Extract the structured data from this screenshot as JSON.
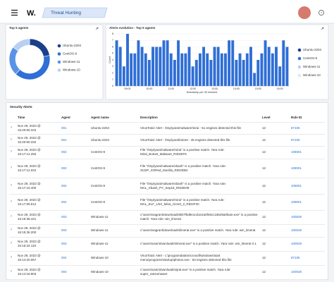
{
  "header": {
    "logo": "W.",
    "title": "Threat Hunting"
  },
  "chart_data": [
    {
      "type": "pie",
      "title": "Top 5 agents",
      "categories": [
        "Ubuntu-2204",
        "CentOS-9",
        "Windows-11",
        "Windows-10"
      ],
      "values": [
        22,
        40,
        23,
        15
      ],
      "colors": [
        "#1b3f8a",
        "#2f6fd6",
        "#5a93e6",
        "#b9d0f3"
      ]
    },
    {
      "type": "bar",
      "title": "Alerts evolution - Top 5 agents",
      "x_label": "timestamp per 30 minutes",
      "y_label": "Count",
      "categories": [
        null,
        null,
        null,
        "09:00",
        null,
        null,
        null,
        null,
        null,
        "10:00",
        null,
        null,
        null,
        null,
        null,
        "11:00",
        null,
        null,
        null,
        null,
        null,
        "12:00",
        null,
        null,
        null,
        null,
        null,
        "13:00",
        null,
        null,
        null,
        null,
        null,
        "14:00",
        null,
        null,
        null,
        null,
        null,
        "15:00",
        null,
        null,
        null,
        null,
        null,
        "16:00",
        null,
        null
      ],
      "values": [
        7,
        6,
        3,
        8,
        5,
        5,
        7,
        6,
        5,
        4,
        6,
        6,
        6,
        7,
        7,
        5,
        4,
        7,
        5,
        5,
        6,
        3,
        4,
        5,
        6,
        5,
        4,
        6,
        6,
        5,
        5,
        7,
        7,
        4,
        5,
        4,
        5,
        6,
        2,
        4,
        5,
        7,
        6,
        5,
        6,
        3,
        7,
        6
      ],
      "color": "#2f6fd6",
      "ylim": [
        0,
        8
      ],
      "yticks": [
        0,
        1,
        2,
        3,
        4,
        5,
        6,
        7,
        8
      ],
      "grid": true,
      "legend": [
        "Ubuntu-2204",
        "CentOS-9",
        "Windows-11",
        "Windows-10"
      ],
      "legend_colors": [
        "#1b3f8a",
        "#2f6fd6",
        "#b9d0f3",
        "#dde7f6"
      ]
    }
  ],
  "table": {
    "title": "Security Alerts",
    "columns": [
      "Time",
      "Agent",
      "Agent name",
      "Description",
      "Level",
      "Rule ID"
    ],
    "rows": [
      [
        "Nov 29, 2023 @ 16:20:50.343",
        "001",
        "Ubuntu-2204",
        "VirusTotal: Alert - /tmp/yara/malware/mirai - 51 engines detected this file",
        "12",
        "87105"
      ],
      [
        "Nov 29, 2023 @ 16:20:50.332",
        "001",
        "Ubuntu-2204",
        "VirusTotal: Alert - /tmp/yara/botnet - 45 engines detected this file",
        "12",
        "87105"
      ],
      [
        "Nov 29, 2023 @ 16:17:14.250",
        "002",
        "CentOS-9",
        "File \"/tmp/yara/malware/mirai\" is a positive match. Yara rule: Mirai_Botnet_Malware_RID2EF6",
        "12",
        "108001"
      ],
      [
        "Nov 29, 2023 @ 16:17:12.022",
        "002",
        "CentOS-9",
        "File \"/tmp/yara/malware/xbash\" is a positive match. Yara rule: SUSP_XORed_Mozilla_RID2DB4",
        "12",
        "108001"
      ],
      [
        "Nov 29, 2023 @ 16:17:10.400",
        "002",
        "CentOS-9",
        "File \"/tmp/yara/malware/xbash\" is a positive match. Yara rule: MAL_Xbash_PY_Sep18_RID2E09",
        "12",
        "108001"
      ],
      [
        "Nov 29, 2023 @ 16:17:09.512",
        "002",
        "CentOS-9",
        "File \"/tmp/yara/malware/mirai\" is a positive match. Yara rule: MAL_ELF_LNX_Mirai_Oct10_2_RID2F3C",
        "12",
        "108001"
      ],
      [
        "Nov 29, 2023 @ 16:15:38.421",
        "003",
        "Windows-11",
        "c:\\users\\vagrant\\downloads\\8b7f0d9e1cd1e2a0f49cc16b29a0fa4e.exe\" is a positive match. Yara rule: win_limerat",
        "12",
        "100028"
      ],
      [
        "Nov 29, 2023 @ 16:15:36.200",
        "003",
        "Windows-11",
        "c:\\users\\vagrant\\downloads\\limerat.exe\" is a positive match. Yara rule: win_limerat",
        "12",
        "100028"
      ],
      [
        "Nov 29, 2023 @ 16:15:34.118",
        "003",
        "Windows-11",
        "c:\\users\\user\\downloads\\limerat.exe\" is a positive match. Yara rule: win_limerat 0.1",
        "12",
        "100028"
      ],
      [
        "Nov 29, 2023 @ 16:14:20.057",
        "004",
        "Windows-10",
        "VirusTotal: Alert - c:\\programdata\\microsoft\\windows\\start menu\\programs\\startup\\photos.exe - 63 engines detected this file",
        "12",
        "87105"
      ],
      [
        "Nov 29, 2023 @ 16:14:18.903",
        "004",
        "Windows-10",
        "c:\\users\\user\\downloads\\njrat.exe\" is a positive match. Yara rule: super_ransomware",
        "12",
        "100028"
      ]
    ]
  }
}
